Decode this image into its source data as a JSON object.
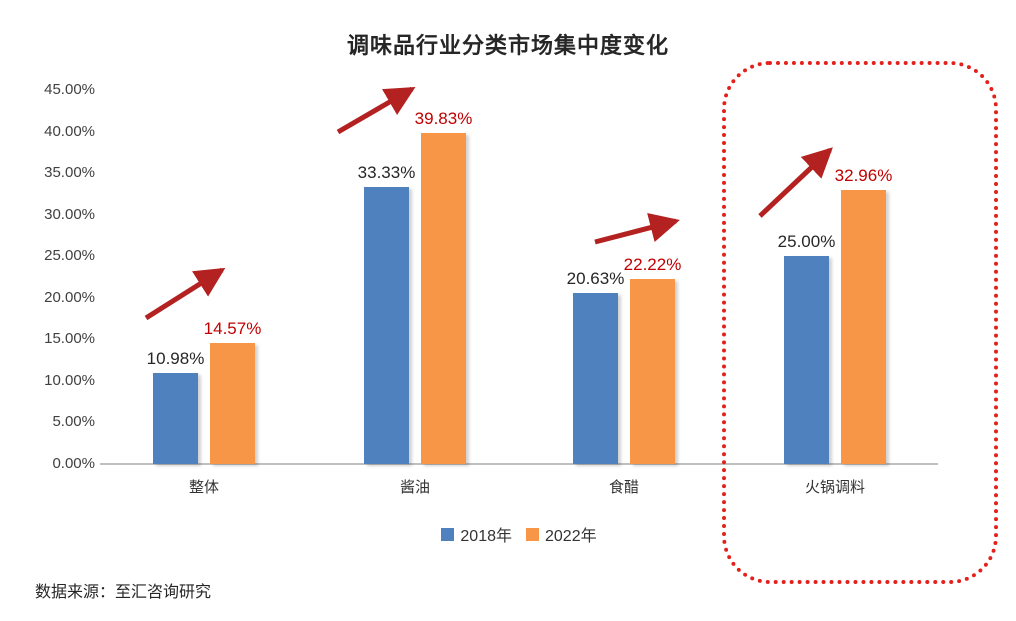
{
  "title": "调味品行业分类市场集中度变化",
  "source_note": "数据来源：至汇咨询研究",
  "colors": {
    "series_2018": "#4e81bd",
    "series_2022": "#f79646",
    "value_label_2018": "#262626",
    "value_label_2022": "#c00000",
    "trend_arrow": "#b42121",
    "highlight_border": "#e3211c",
    "axis_line": "#bfbfbf",
    "tick_text": "#404040"
  },
  "chart_data": {
    "type": "bar",
    "title": "调味品行业分类市场集中度变化",
    "categories": [
      "整体",
      "酱油",
      "食醋",
      "火锅调料"
    ],
    "series": [
      {
        "name": "2018年",
        "color": "#4e81bd",
        "values": [
          10.98,
          33.33,
          20.63,
          25.0
        ],
        "labels": [
          "10.98%",
          "33.33%",
          "20.63%",
          "25.00%"
        ],
        "label_color": "#262626"
      },
      {
        "name": "2022年",
        "color": "#f79646",
        "values": [
          14.57,
          39.83,
          22.22,
          32.96
        ],
        "labels": [
          "14.57%",
          "39.83%",
          "22.22%",
          "32.96%"
        ],
        "label_color": "#c00000"
      }
    ],
    "xlabel": "",
    "ylabel": "",
    "ylim": [
      0,
      45
    ],
    "ytick_step": 5,
    "ytick_labels": [
      "0.00%",
      "5.00%",
      "10.00%",
      "15.00%",
      "20.00%",
      "25.00%",
      "30.00%",
      "35.00%",
      "40.00%",
      "45.00%"
    ],
    "grid": false,
    "legend_position": "bottom",
    "legend": [
      "2018年",
      "2022年"
    ],
    "annotations": {
      "trend_arrows": [
        {
          "category": "整体",
          "direction": "up"
        },
        {
          "category": "酱油",
          "direction": "up"
        },
        {
          "category": "食醋",
          "direction": "up"
        },
        {
          "category": "火锅调料",
          "direction": "up"
        }
      ],
      "highlight_box": {
        "category": "火锅调料",
        "style": "red-dotted-rounded-rect"
      }
    }
  }
}
